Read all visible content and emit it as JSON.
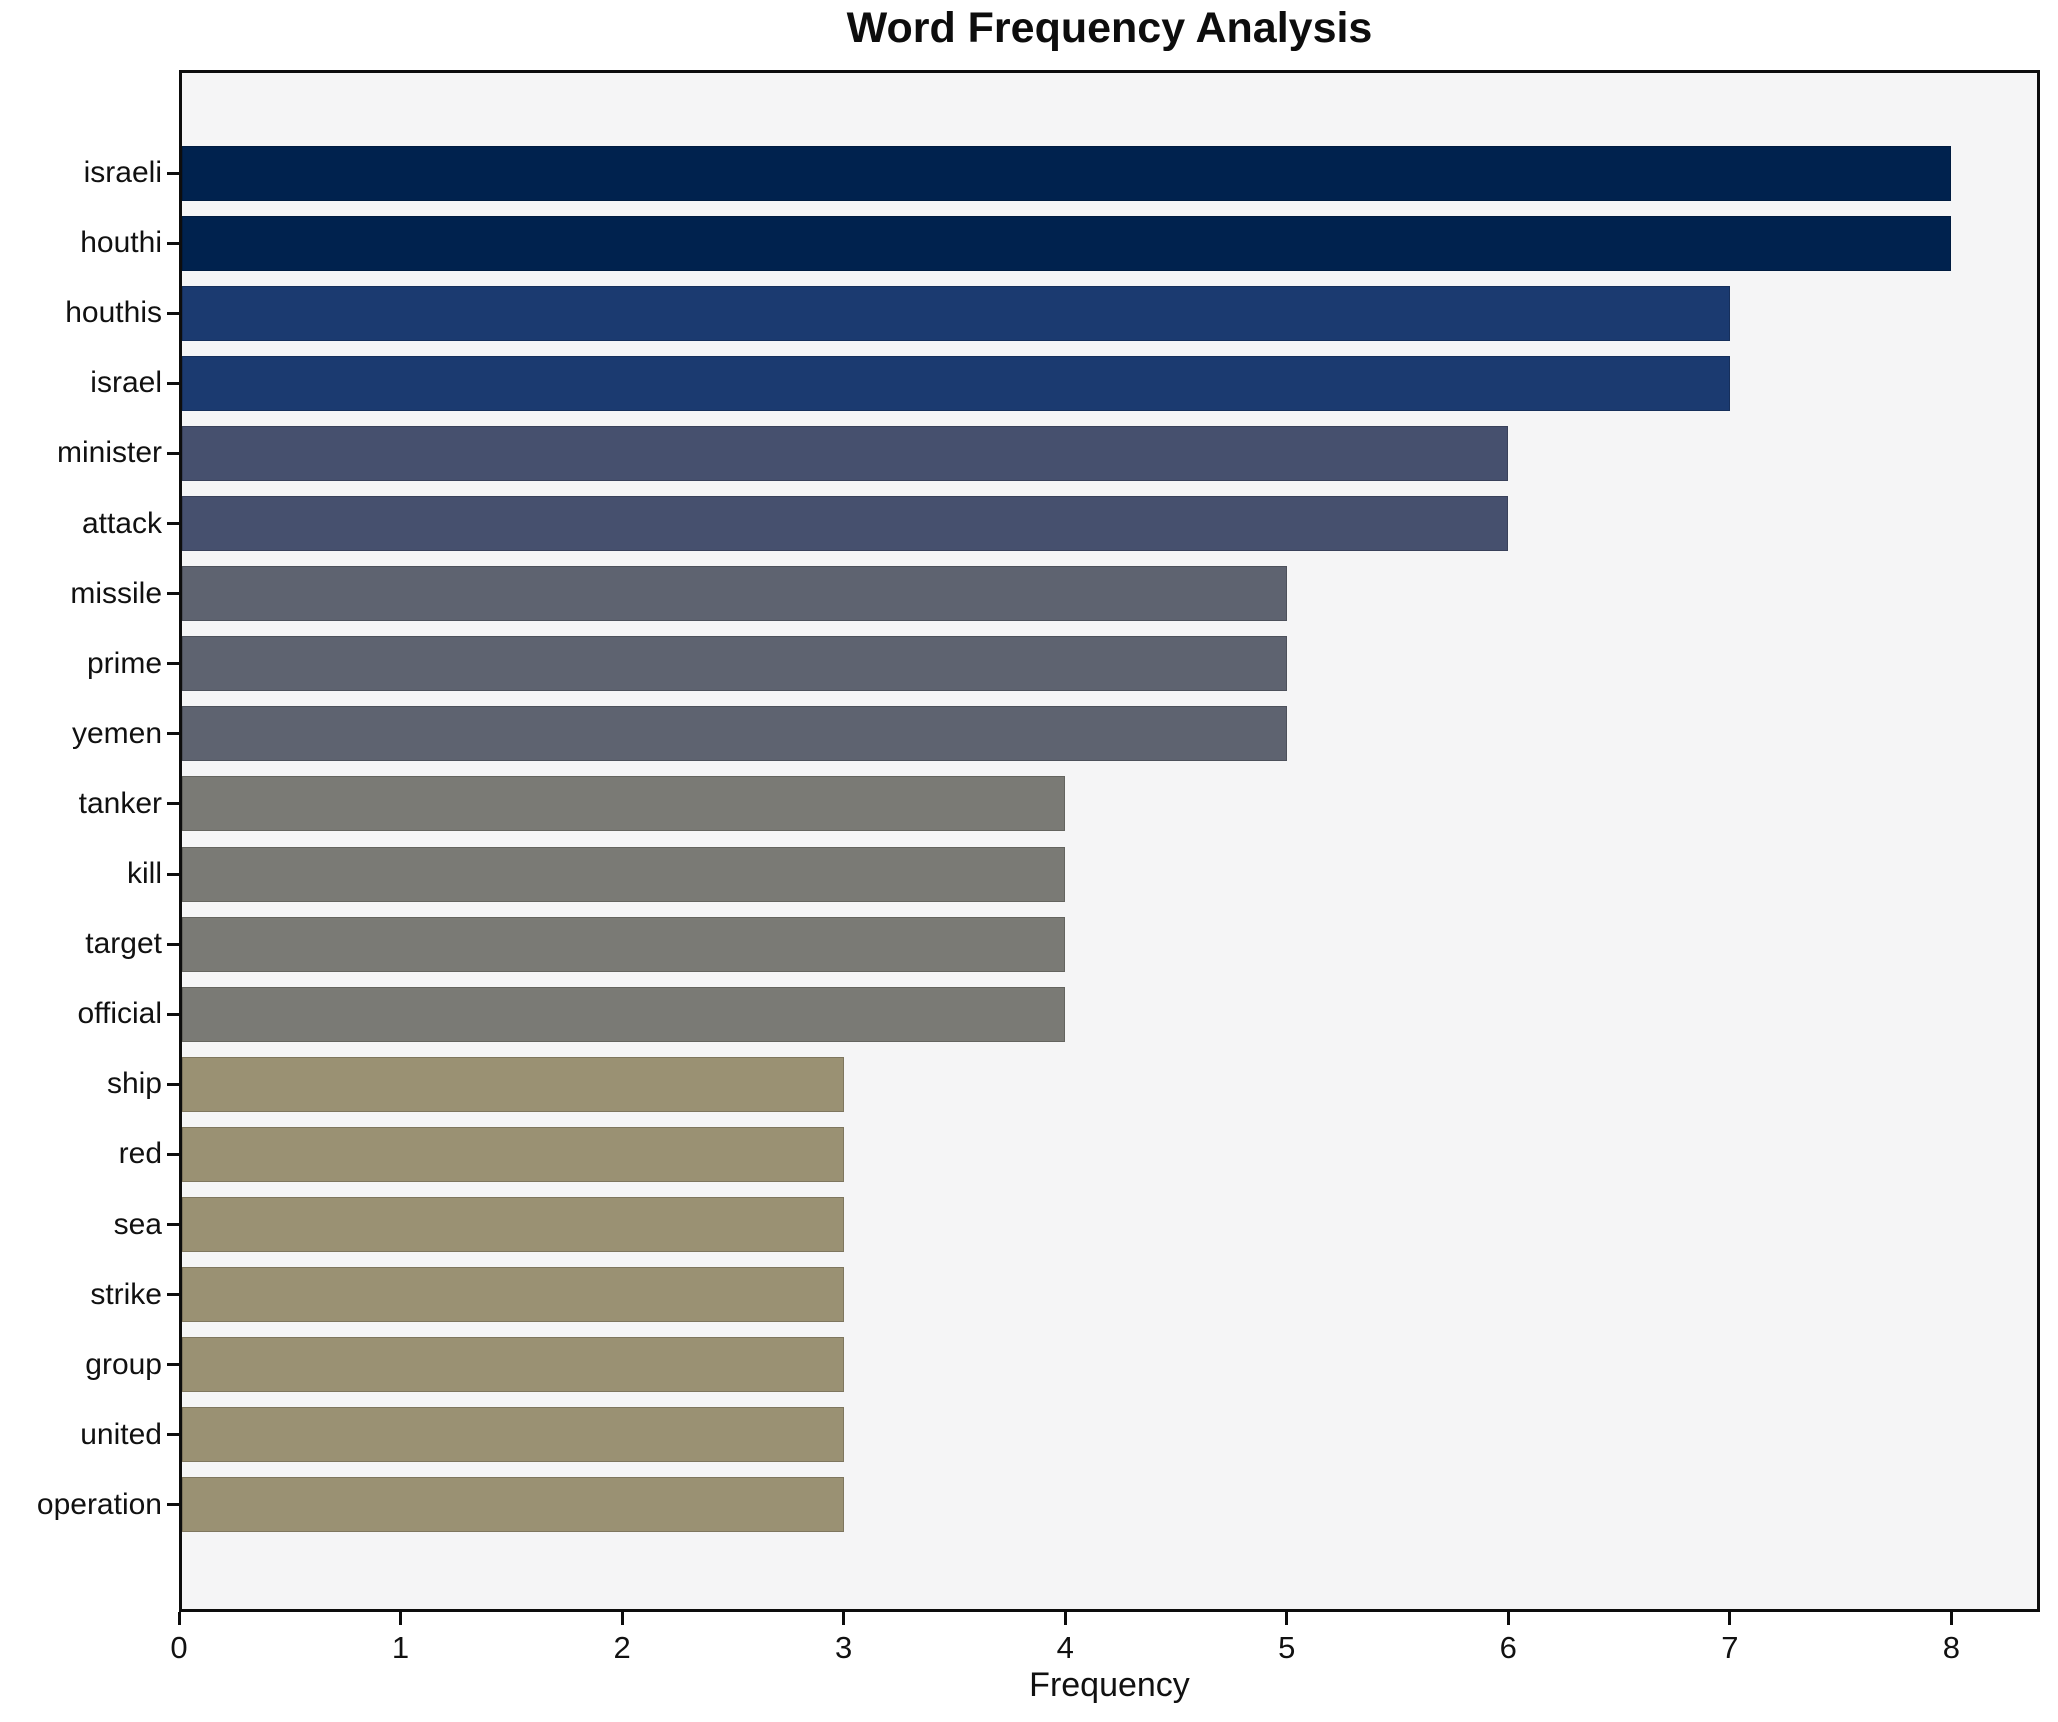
{
  "chart_data": {
    "type": "bar",
    "orientation": "horizontal",
    "title": "Word Frequency Analysis",
    "xlabel": "Frequency",
    "ylabel": "",
    "categories": [
      "israeli",
      "houthi",
      "houthis",
      "israel",
      "minister",
      "attack",
      "missile",
      "prime",
      "yemen",
      "tanker",
      "kill",
      "target",
      "official",
      "ship",
      "red",
      "sea",
      "strike",
      "group",
      "united",
      "operation"
    ],
    "values": [
      8,
      8,
      7,
      7,
      6,
      6,
      5,
      5,
      5,
      4,
      4,
      4,
      4,
      3,
      3,
      3,
      3,
      3,
      3,
      3
    ],
    "xlim": [
      0,
      8.4
    ],
    "x_ticks": [
      0,
      1,
      2,
      3,
      4,
      5,
      6,
      7,
      8
    ],
    "grid": false,
    "legend": false,
    "bar_colors_by_value": {
      "8": "#00224e",
      "7": "#1b3a70",
      "6": "#46506e",
      "5": "#5e6370",
      "4": "#7a7a75",
      "3": "#9a9173"
    },
    "plot_background": "#f5f5f6",
    "figure_background": "#ffffff",
    "spine_color": "#0d0d0d"
  }
}
